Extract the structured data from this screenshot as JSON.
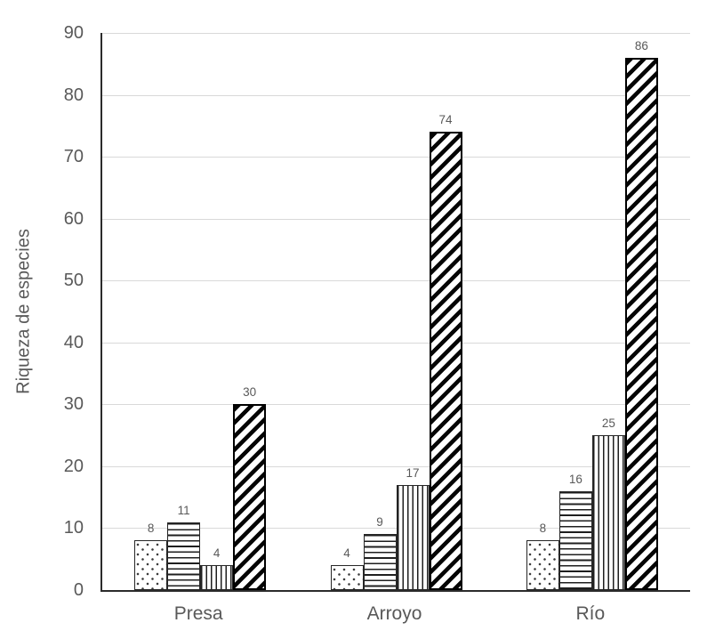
{
  "chart_data": {
    "type": "bar",
    "title": "",
    "xlabel": "",
    "ylabel": "Riqueza de especies",
    "categories": [
      "Presa",
      "Arroyo",
      "Río"
    ],
    "series": [
      {
        "pattern": "dotted",
        "values": [
          8,
          4,
          8
        ]
      },
      {
        "pattern": "horizontal-lines",
        "values": [
          11,
          9,
          16
        ]
      },
      {
        "pattern": "vertical-lines",
        "values": [
          4,
          17,
          25
        ]
      },
      {
        "pattern": "diagonal-stripes",
        "values": [
          30,
          74,
          86
        ]
      }
    ],
    "data_labels": [
      [
        "8",
        "11",
        "4",
        "30"
      ],
      [
        "4",
        "9",
        "17",
        "74"
      ],
      [
        "8",
        "16",
        "25",
        "86"
      ]
    ],
    "ylim": [
      0,
      90
    ],
    "yticks": [
      0,
      10,
      20,
      30,
      40,
      50,
      60,
      70,
      80,
      90
    ],
    "grid": true,
    "legend": false,
    "colors": {
      "bar_fill": "#ffffff",
      "pattern_ink": "#1f1f1f",
      "axis_line": "#2b2b2b",
      "gridline": "#d9d9d9",
      "label_text": "#595959"
    }
  }
}
